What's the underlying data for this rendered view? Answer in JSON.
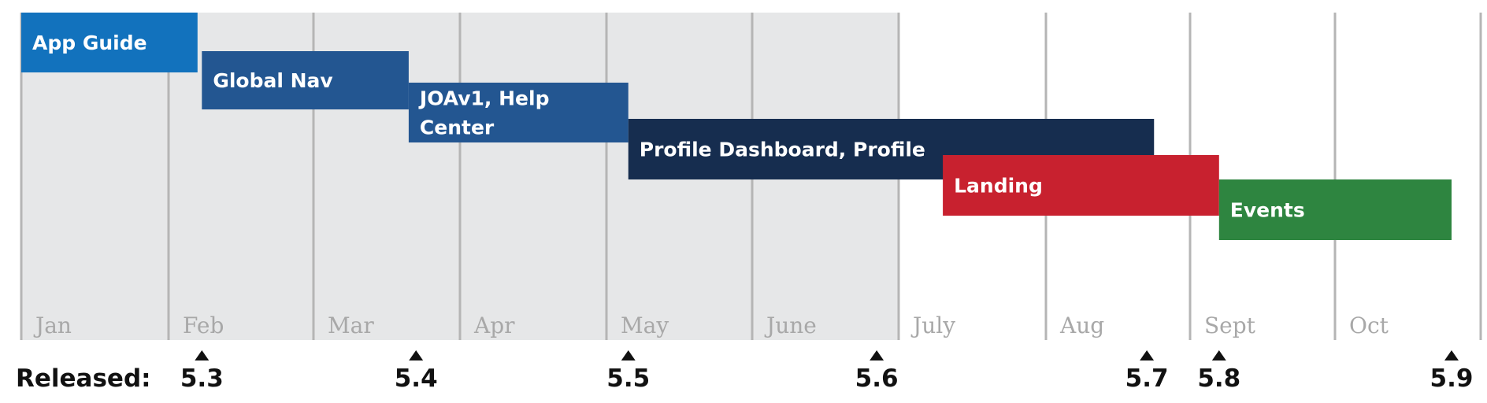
{
  "chart_data": {
    "type": "gantt",
    "months": [
      "Jan",
      "Feb",
      "Mar",
      "Apr",
      "May",
      "June",
      "July",
      "Aug",
      "Sept",
      "Oct"
    ],
    "shaded_through_month": "June",
    "tasks": [
      {
        "label": "App Guide",
        "start": 0.0,
        "end": 1.2,
        "color": "#1272bd"
      },
      {
        "label": "Global Nav",
        "start": 1.23,
        "end": 2.65,
        "color": "#235691"
      },
      {
        "label": "JOAv1, Help Center",
        "label_lines": [
          "JOAv1, Help",
          "Center"
        ],
        "start": 2.65,
        "end": 4.15,
        "color": "#235691"
      },
      {
        "label": "Profile Dashboard, Profile",
        "start": 4.15,
        "end": 7.75,
        "color": "#162d4f"
      },
      {
        "label": "Landing",
        "start": 6.3,
        "end": 8.2,
        "color": "#c8212f"
      },
      {
        "label": "Events",
        "start": 8.2,
        "end": 9.8,
        "color": "#2e8540"
      }
    ],
    "releases_title": "Released:",
    "releases": [
      {
        "label": "5.3",
        "at": 1.23
      },
      {
        "label": "5.4",
        "at": 2.7
      },
      {
        "label": "5.5",
        "at": 4.15
      },
      {
        "label": "5.6",
        "at": 5.85
      },
      {
        "label": "5.7",
        "at": 7.7
      },
      {
        "label": "5.8",
        "at": 8.2
      },
      {
        "label": "5.9",
        "at": 9.8
      }
    ],
    "colors": {
      "shaded": "#e6e7e8",
      "gridline": "#b5b5b5",
      "month_text": "#a8a8a8"
    }
  }
}
